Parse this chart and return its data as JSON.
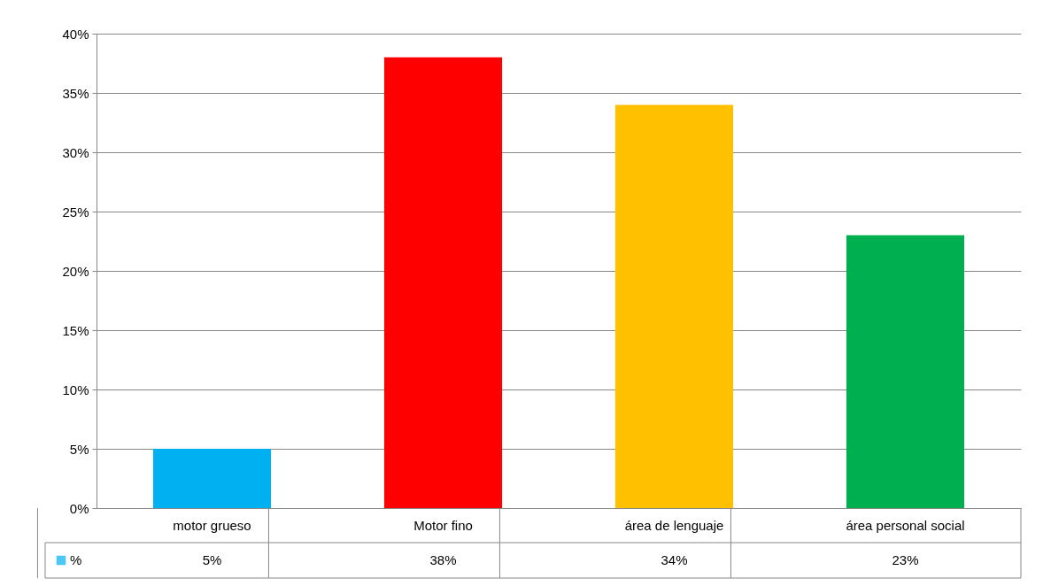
{
  "chart_data": {
    "type": "bar",
    "categories": [
      "motor grueso",
      "Motor fino",
      "área de lenguaje",
      "área personal social"
    ],
    "series": [
      {
        "name": "%",
        "values": [
          5,
          38,
          34,
          23
        ]
      }
    ],
    "colors": [
      "#00b0f0",
      "#ff0000",
      "#ffc000",
      "#00b050"
    ],
    "value_labels": [
      "5%",
      "38%",
      "34%",
      "23%"
    ],
    "ylim": [
      0,
      40
    ],
    "yticks": [
      {
        "value": 0,
        "label": "0%"
      },
      {
        "value": 5,
        "label": "5%"
      },
      {
        "value": 10,
        "label": "10%"
      },
      {
        "value": 15,
        "label": "15%"
      },
      {
        "value": 20,
        "label": "20%"
      },
      {
        "value": 25,
        "label": "25%"
      },
      {
        "value": 30,
        "label": "30%"
      },
      {
        "value": 35,
        "label": "35%"
      },
      {
        "value": 40,
        "label": "40%"
      }
    ],
    "grid": "y"
  }
}
